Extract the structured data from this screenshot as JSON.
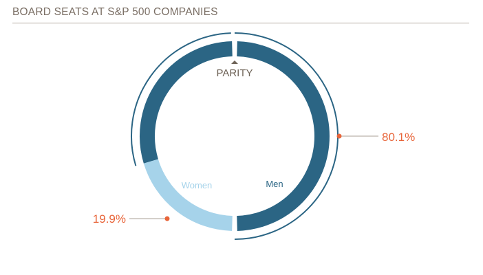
{
  "title": "BOARD SEATS AT S&P 500 COMPANIES",
  "marker_label": "PARITY",
  "colors": {
    "men": "#2b6584",
    "women": "#a6d3ea",
    "callout": "#e8653a",
    "outer_arc": "#2b6584",
    "title": "#7a6e64",
    "marker": "#6e6357"
  },
  "chart_data": {
    "type": "pie",
    "style": "donut",
    "title": "BOARD SEATS AT S&P 500 COMPANIES",
    "categories": [
      "Men",
      "Women"
    ],
    "values": [
      80.1,
      19.9
    ],
    "value_labels": [
      "80.1%",
      "19.9%"
    ]
  }
}
